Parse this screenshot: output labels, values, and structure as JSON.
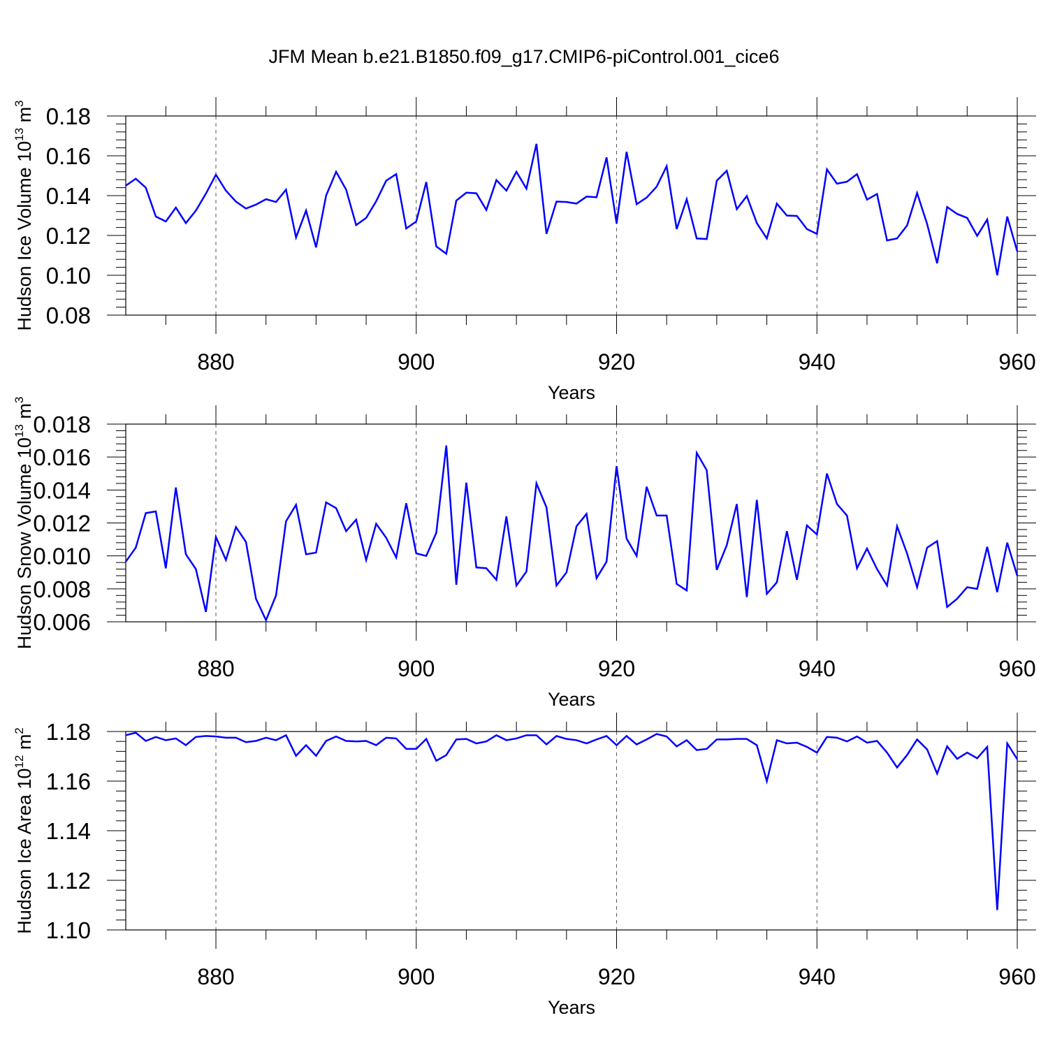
{
  "title": "JFM Mean b.e21.B1850.f09_g17.CMIP6-piControl.001_cice6",
  "chart_data": [
    {
      "type": "line",
      "title": "JFM Mean b.e21.B1850.f09_g17.CMIP6-piControl.001_cice6",
      "xlabel": "Years",
      "ylabel_base": "Hudson Ice Volume 10",
      "ylabel_exp": "13",
      "ylabel_unit": " m",
      "ylabel_unit_exp": "3",
      "xlim": [
        871,
        960
      ],
      "ylim": [
        0.08,
        0.18
      ],
      "xticks": [
        880,
        900,
        920,
        940,
        960
      ],
      "xtick_labels": [
        "880",
        "900",
        "920",
        "940",
        "960"
      ],
      "yticks": [
        0.08,
        0.1,
        0.12,
        0.14,
        0.16,
        0.18
      ],
      "ytick_labels": [
        "0.08",
        "0.10",
        "0.12",
        "0.14",
        "0.16",
        "0.18"
      ],
      "grid": "vertical dashed at major x ticks",
      "series": [
        {
          "name": "Hudson Ice Volume",
          "color": "#0000ff",
          "x_start": 871,
          "values": [
            0.145,
            0.1485,
            0.144,
            0.1295,
            0.127,
            0.134,
            0.1262,
            0.1325,
            0.141,
            0.1505,
            0.1425,
            0.137,
            0.1335,
            0.1355,
            0.1382,
            0.1368,
            0.143,
            0.119,
            0.1325,
            0.114,
            0.14,
            0.152,
            0.143,
            0.1252,
            0.1288,
            0.1372,
            0.1475,
            0.1508,
            0.1235,
            0.127,
            0.1468,
            0.1145,
            0.1108,
            0.1375,
            0.1415,
            0.1412,
            0.1328,
            0.1478,
            0.1425,
            0.152,
            0.1435,
            0.166,
            0.1208,
            0.137,
            0.1368,
            0.136,
            0.1395,
            0.1392,
            0.1592,
            0.126,
            0.162,
            0.1357,
            0.139,
            0.1445,
            0.1548,
            0.1232,
            0.1382,
            0.1185,
            0.1182,
            0.1475,
            0.1525,
            0.1332,
            0.1398,
            0.1262,
            0.1185,
            0.136,
            0.13,
            0.1298,
            0.1232,
            0.1208,
            0.1532,
            0.146,
            0.147,
            0.1508,
            0.138,
            0.1408,
            0.1175,
            0.1185,
            0.125,
            0.1413,
            0.1258,
            0.106,
            0.1343,
            0.1308,
            0.1288,
            0.1198,
            0.128,
            0.1,
            0.1295,
            0.112
          ]
        }
      ]
    },
    {
      "type": "line",
      "xlabel": "Years",
      "ylabel_base": "Hudson Snow Volume 10",
      "ylabel_exp": "13",
      "ylabel_unit": " m",
      "ylabel_unit_exp": "3",
      "xlim": [
        871,
        960
      ],
      "ylim": [
        0.006,
        0.018
      ],
      "xticks": [
        880,
        900,
        920,
        940,
        960
      ],
      "xtick_labels": [
        "880",
        "900",
        "920",
        "940",
        "960"
      ],
      "yticks": [
        0.006,
        0.008,
        0.01,
        0.012,
        0.014,
        0.016,
        0.018
      ],
      "ytick_labels": [
        "0.006",
        "0.008",
        "0.010",
        "0.012",
        "0.014",
        "0.016",
        "0.018"
      ],
      "grid": "vertical dashed at major x ticks",
      "series": [
        {
          "name": "Hudson Snow Volume",
          "color": "#0000ff",
          "x_start": 871,
          "values": [
            0.00965,
            0.0105,
            0.0126,
            0.0127,
            0.00925,
            0.01415,
            0.0101,
            0.0092,
            0.0066,
            0.01115,
            0.00975,
            0.01175,
            0.01085,
            0.0074,
            0.0061,
            0.0076,
            0.0121,
            0.0131,
            0.0101,
            0.0102,
            0.01325,
            0.0129,
            0.0115,
            0.0122,
            0.00975,
            0.01195,
            0.0111,
            0.0099,
            0.0132,
            0.01015,
            0.01,
            0.0114,
            0.0167,
            0.00825,
            0.01445,
            0.0093,
            0.00925,
            0.00855,
            0.0124,
            0.0082,
            0.00905,
            0.0144,
            0.01295,
            0.0082,
            0.009,
            0.0118,
            0.01255,
            0.00865,
            0.00965,
            0.01545,
            0.01105,
            0.01,
            0.0142,
            0.01245,
            0.01245,
            0.0083,
            0.0079,
            0.01625,
            0.0152,
            0.00915,
            0.01065,
            0.01315,
            0.0075,
            0.0134,
            0.0077,
            0.0084,
            0.0115,
            0.00855,
            0.01185,
            0.0113,
            0.015,
            0.01315,
            0.01245,
            0.00925,
            0.01045,
            0.0092,
            0.0082,
            0.0118,
            0.01015,
            0.0081,
            0.0105,
            0.0109,
            0.0069,
            0.0074,
            0.0081,
            0.008,
            0.01055,
            0.0078,
            0.0108,
            0.0088
          ]
        }
      ]
    },
    {
      "type": "line",
      "xlabel": "Years",
      "ylabel_base": "Hudson Ice Area 10",
      "ylabel_exp": "12",
      "ylabel_unit": " m",
      "ylabel_unit_exp": "2",
      "xlim": [
        871,
        960
      ],
      "ylim": [
        1.1,
        1.18
      ],
      "xticks": [
        880,
        900,
        920,
        940,
        960
      ],
      "xtick_labels": [
        "880",
        "900",
        "920",
        "940",
        "960"
      ],
      "yticks": [
        1.1,
        1.12,
        1.14,
        1.16,
        1.18
      ],
      "ytick_labels": [
        "1.10",
        "1.12",
        "1.14",
        "1.16",
        "1.18"
      ],
      "grid": "vertical dashed at major x ticks",
      "series": [
        {
          "name": "Hudson Ice Area",
          "color": "#0000ff",
          "x_start": 871,
          "values": [
            1.1785,
            1.1795,
            1.1762,
            1.1778,
            1.1765,
            1.1772,
            1.1745,
            1.1778,
            1.1782,
            1.178,
            1.1775,
            1.1775,
            1.1757,
            1.1762,
            1.1775,
            1.1765,
            1.1785,
            1.1702,
            1.1745,
            1.1702,
            1.1762,
            1.178,
            1.1762,
            1.176,
            1.1762,
            1.1745,
            1.1775,
            1.1772,
            1.173,
            1.173,
            1.177,
            1.1682,
            1.1705,
            1.1768,
            1.177,
            1.1752,
            1.176,
            1.1785,
            1.1765,
            1.1772,
            1.1785,
            1.1785,
            1.1748,
            1.1782,
            1.177,
            1.1765,
            1.1752,
            1.1768,
            1.1782,
            1.1745,
            1.1782,
            1.1748,
            1.1768,
            1.179,
            1.178,
            1.174,
            1.1765,
            1.1725,
            1.173,
            1.1768,
            1.1768,
            1.177,
            1.177,
            1.1745,
            1.16,
            1.1765,
            1.1752,
            1.1755,
            1.1738,
            1.1715,
            1.1778,
            1.1775,
            1.176,
            1.178,
            1.1755,
            1.1762,
            1.1715,
            1.1655,
            1.1705,
            1.1768,
            1.1728,
            1.163,
            1.174,
            1.169,
            1.1715,
            1.1692,
            1.1738,
            1.108,
            1.1752,
            1.1688
          ]
        }
      ]
    }
  ]
}
